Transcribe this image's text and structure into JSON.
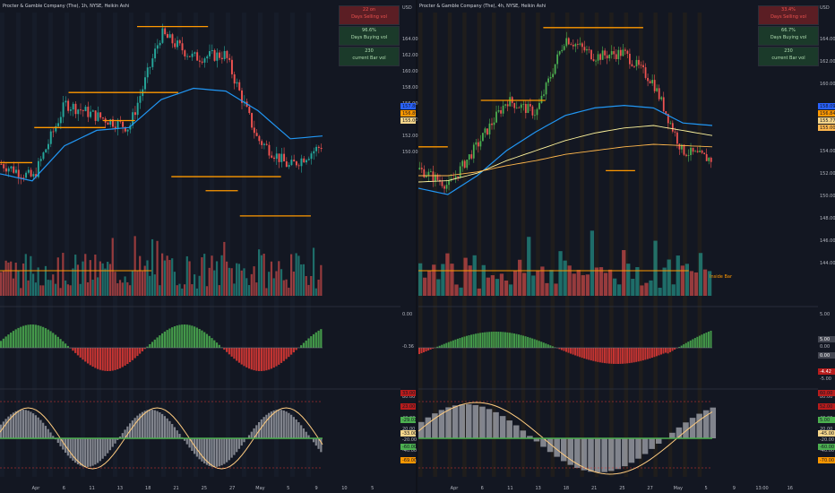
{
  "left_chart": {
    "title": "Procter & Gamble Company (The), 1h, NYSE, Heikin Ashi",
    "price_axis_unit": "USD",
    "price_ticks": [
      "164.00",
      "162.00",
      "160.00",
      "158.00",
      "156.00",
      "154.00",
      "152.00",
      "150.00"
    ],
    "price_tags": [
      "157.80",
      "156.89",
      "155.00"
    ],
    "stats": [
      {
        "value": "22 on",
        "label": "Days Selling vol",
        "color": "#5b1e24",
        "text": "#ef5350"
      },
      {
        "value": "96.6%",
        "label": "Days Buying vol",
        "color": "#1b3a2a",
        "text": "#b2dfb2"
      },
      {
        "value": "230",
        "label": "current Bar vol",
        "color": "#1b3a2a",
        "text": "#b2dfb2"
      }
    ],
    "x_ticks": [
      "Apr",
      "6",
      "11",
      "13",
      "18",
      "21",
      "25",
      "27",
      "May",
      "5",
      "9",
      "10",
      "5"
    ],
    "osc1_ticks": [
      "0.00",
      "-0.36"
    ],
    "osc2_ticks": [
      "80.00",
      "60.00",
      "40.00",
      "20.00",
      "-20.00",
      "-40.00",
      "-60.00"
    ],
    "osc2_tags": [
      "33.00",
      "23.00",
      "-29.01",
      "-33.00",
      "-60.00",
      "-69.00"
    ]
  },
  "right_chart": {
    "title": "Procter & Gamble Company (The), 4h, NYSE, Heikin Ashi",
    "price_axis_unit": "USD",
    "price_ticks": [
      "164.00",
      "162.00",
      "160.00",
      "158.00",
      "156.00",
      "154.00",
      "152.00",
      "150.00",
      "148.00",
      "146.00",
      "144.00"
    ],
    "price_tags": [
      "158.09",
      "156.84",
      "155.77",
      "155.00"
    ],
    "stats": [
      {
        "value": "33.4%",
        "label": "Days Selling vol",
        "color": "#5b1e24",
        "text": "#ef5350"
      },
      {
        "value": "66.7%",
        "label": "Days Buying vol",
        "color": "#1b3a2a",
        "text": "#b2dfb2"
      },
      {
        "value": "230",
        "label": "current Bar vol",
        "color": "#1b3a2a",
        "text": "#b2dfb2"
      }
    ],
    "annotation": "Inside Bar",
    "x_ticks": [
      "Apr",
      "6",
      "11",
      "13",
      "18",
      "21",
      "25",
      "27",
      "May",
      "5",
      "9",
      "13:00",
      "16"
    ],
    "osc1_ticks": [
      "5.00",
      "0.00",
      "-5.00"
    ],
    "osc1_tags": [
      "5.00",
      "0.00",
      "-4.42"
    ],
    "osc2_ticks": [
      "80.00",
      "60.00",
      "40.00",
      "20.00",
      "-20.00",
      "-40.00",
      "-60.00"
    ],
    "osc2_tags": [
      "60.00",
      "52.00",
      "5.00",
      "-45.00",
      "-60.00",
      "-70.00"
    ]
  },
  "chart_data": [
    {
      "type": "line",
      "title": "Procter & Gamble Company (The), 1h, NYSE, Heikin Ashi",
      "xlabel": "",
      "ylabel": "USD",
      "ylim": [
        149,
        166
      ],
      "x": [
        "Apr",
        "6",
        "11",
        "13",
        "18",
        "21",
        "25",
        "27",
        "May",
        "5",
        "9"
      ],
      "series": [
        {
          "values": [
            155.2,
            154.2,
            159.5,
            158.6,
            157.8,
            164.5,
            162.8,
            163.0,
            157.0,
            155.0,
            156.5
          ]
        },
        {
          "values": [
            154.5,
            154.0,
            156.5,
            157.6,
            157.8,
            159.8,
            160.6,
            160.4,
            159.0,
            157.0,
            157.2
          ]
        }
      ],
      "levels": [
        155.3,
        157.8,
        160.3,
        158.3,
        165.0,
        154.3,
        153.3,
        151.5
      ]
    },
    {
      "type": "line",
      "title": "Procter & Gamble Company (The), 4h, NYSE, Heikin Ashi",
      "xlabel": "",
      "ylabel": "USD",
      "ylim": [
        147,
        166
      ],
      "x": [
        "Apr",
        "6",
        "11",
        "13",
        "18",
        "21",
        "25",
        "27",
        "May",
        "5",
        "9"
      ],
      "series": [
        {
          "values": [
            153.5,
            152.2,
            155.5,
            159.0,
            158.0,
            164.0,
            162.5,
            162.8,
            160.5,
            155.0,
            154.3
          ]
        },
        {
          "values": [
            152.0,
            151.5,
            153.0,
            155.0,
            156.5,
            157.8,
            158.4,
            158.6,
            158.4,
            157.2,
            157.0
          ]
        },
        {
          "values": [
            152.5,
            152.6,
            153.2,
            154.2,
            155.0,
            155.8,
            156.4,
            156.8,
            157.0,
            156.6,
            156.2
          ]
        },
        {
          "values": [
            153.0,
            153.0,
            153.3,
            153.8,
            154.2,
            154.7,
            155.0,
            155.3,
            155.5,
            155.4,
            155.3
          ]
        }
      ],
      "levels": [
        155.3,
        159.0,
        164.8,
        153.4
      ]
    }
  ]
}
